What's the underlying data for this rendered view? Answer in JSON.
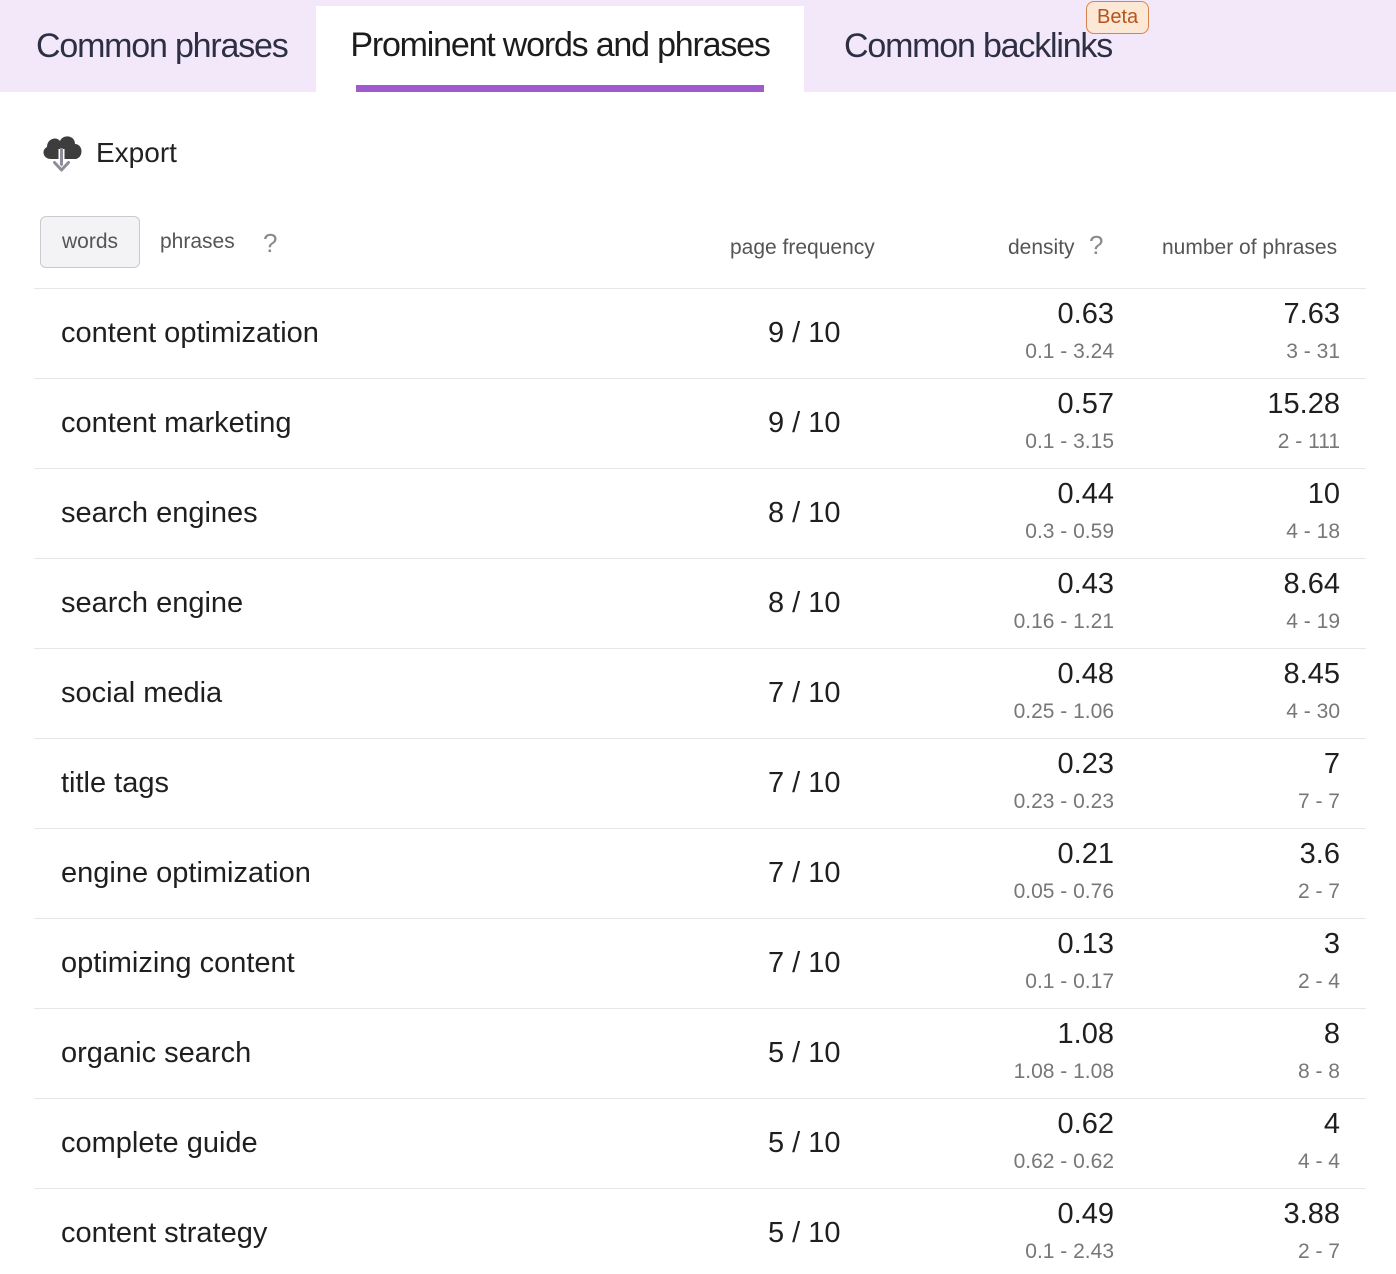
{
  "tabs": [
    {
      "label": "Common phrases"
    },
    {
      "label": "Prominent words and phrases"
    },
    {
      "label": "Common backlinks",
      "badge": "Beta"
    }
  ],
  "toolbar": {
    "export_label": "Export"
  },
  "toggle": {
    "words": "words",
    "phrases": "phrases",
    "help": "?"
  },
  "columns": {
    "page_frequency": "page frequency",
    "density": "density",
    "density_help": "?",
    "number_of_phrases": "number of phrases"
  },
  "colors": {
    "tab_bar_bg": "#f2e8fa",
    "active_tab_underline": "#a05ad0",
    "beta_badge_border": "#d8834e"
  },
  "rows": [
    {
      "phrase": "content optimization",
      "frequency": "9 / 10",
      "density": "0.63",
      "density_range": "0.1 - 3.24",
      "count": "7.63",
      "count_range": "3 - 31"
    },
    {
      "phrase": "content marketing",
      "frequency": "9 / 10",
      "density": "0.57",
      "density_range": "0.1 - 3.15",
      "count": "15.28",
      "count_range": "2 - 111"
    },
    {
      "phrase": "search engines",
      "frequency": "8 / 10",
      "density": "0.44",
      "density_range": "0.3 - 0.59",
      "count": "10",
      "count_range": "4 - 18"
    },
    {
      "phrase": "search engine",
      "frequency": "8 / 10",
      "density": "0.43",
      "density_range": "0.16 - 1.21",
      "count": "8.64",
      "count_range": "4 - 19"
    },
    {
      "phrase": "social media",
      "frequency": "7 / 10",
      "density": "0.48",
      "density_range": "0.25 - 1.06",
      "count": "8.45",
      "count_range": "4 - 30"
    },
    {
      "phrase": "title tags",
      "frequency": "7 / 10",
      "density": "0.23",
      "density_range": "0.23 - 0.23",
      "count": "7",
      "count_range": "7 - 7"
    },
    {
      "phrase": "engine optimization",
      "frequency": "7 / 10",
      "density": "0.21",
      "density_range": "0.05 - 0.76",
      "count": "3.6",
      "count_range": "2 - 7"
    },
    {
      "phrase": "optimizing content",
      "frequency": "7 / 10",
      "density": "0.13",
      "density_range": "0.1 - 0.17",
      "count": "3",
      "count_range": "2 - 4"
    },
    {
      "phrase": "organic search",
      "frequency": "5 / 10",
      "density": "1.08",
      "density_range": "1.08 - 1.08",
      "count": "8",
      "count_range": "8 - 8"
    },
    {
      "phrase": "complete guide",
      "frequency": "5 / 10",
      "density": "0.62",
      "density_range": "0.62 - 0.62",
      "count": "4",
      "count_range": "4 - 4"
    },
    {
      "phrase": "content strategy",
      "frequency": "5 / 10",
      "density": "0.49",
      "density_range": "0.1 - 2.43",
      "count": "3.88",
      "count_range": "2 - 7"
    }
  ]
}
